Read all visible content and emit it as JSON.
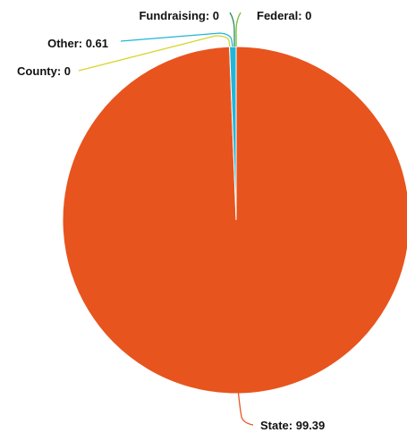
{
  "chart_data": {
    "type": "pie",
    "slices": [
      {
        "name": "State",
        "value": 99.39,
        "label": "State: 99.39",
        "color": "#e8541e"
      },
      {
        "name": "Federal",
        "value": 0,
        "label": "Federal: 0",
        "color": "#70c23a"
      },
      {
        "name": "Fundraising",
        "value": 0,
        "label": "Fundraising: 0",
        "color": "#2e8b57"
      },
      {
        "name": "Other",
        "value": 0.61,
        "label": "Other: 0.61",
        "color": "#21b6d8"
      },
      {
        "name": "County",
        "value": 0,
        "label": "County: 0",
        "color": "#d6d62a"
      }
    ]
  }
}
